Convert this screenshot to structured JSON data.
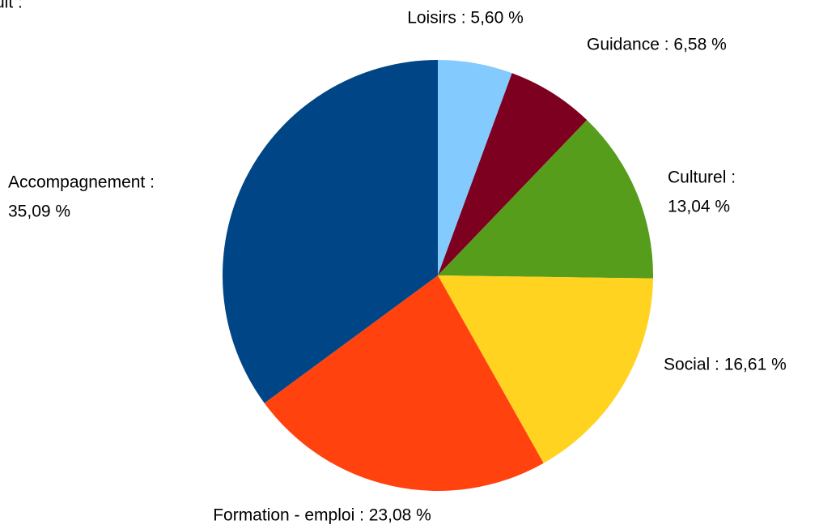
{
  "chart_data": {
    "type": "pie",
    "title": "uit :",
    "values": [
      5.6,
      6.58,
      13.04,
      16.61,
      23.08,
      35.09
    ],
    "value_labels": [
      [
        "Loisirs : 5,60 %"
      ],
      [
        "Guidance : 6,58 %"
      ],
      [
        "Culturel :",
        "13,04 %"
      ],
      [
        "Social : 16,61 %"
      ],
      [
        "Formation - emploi : 23,08 %"
      ],
      [
        "Accompagnement :",
        "35,09 %"
      ]
    ],
    "colors": [
      "#83caff",
      "#7e0021",
      "#579d1c",
      "#ffd320",
      "#ff420e",
      "#004586"
    ]
  }
}
